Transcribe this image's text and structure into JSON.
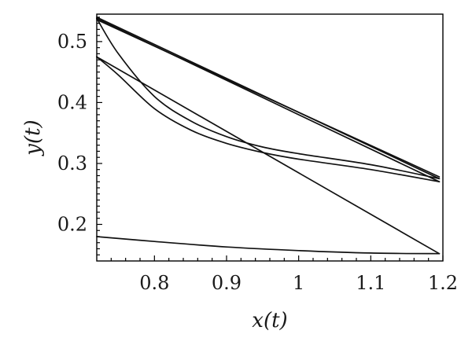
{
  "chart_data": {
    "type": "line",
    "title": "",
    "xlabel": "x(t)",
    "ylabel": "y(t)",
    "xlim": [
      0.72,
      1.2
    ],
    "ylim": [
      0.14,
      0.545
    ],
    "xticks": [
      0.8,
      0.9,
      1,
      1.1,
      1.2
    ],
    "xtick_labels": [
      "0.8",
      "0.9",
      "1",
      "1.1",
      "1.2"
    ],
    "yticks": [
      0.2,
      0.3,
      0.4,
      0.5
    ],
    "ytick_labels": [
      "0.2",
      "0.3",
      "0.4",
      "0.5"
    ],
    "grid": false,
    "legend": "none",
    "color": "#111111",
    "series": [
      {
        "x": [
          0.72,
          0.8,
          0.9,
          1.0,
          1.1,
          1.195
        ],
        "y": [
          0.18,
          0.172,
          0.163,
          0.157,
          0.153,
          0.152
        ]
      },
      {
        "x": [
          1.195,
          0.72
        ],
        "y": [
          0.152,
          0.475
        ]
      },
      {
        "x": [
          0.72,
          0.75,
          0.8,
          0.85,
          0.9,
          0.95,
          1.0,
          1.1,
          1.195
        ],
        "y": [
          0.475,
          0.445,
          0.39,
          0.355,
          0.333,
          0.318,
          0.307,
          0.29,
          0.27
        ]
      },
      {
        "x": [
          1.195,
          0.72
        ],
        "y": [
          0.27,
          0.538
        ]
      },
      {
        "x": [
          0.72,
          0.75,
          0.8,
          0.85,
          0.9,
          0.95,
          1.0,
          1.1,
          1.195
        ],
        "y": [
          0.538,
          0.48,
          0.41,
          0.37,
          0.344,
          0.327,
          0.316,
          0.298,
          0.275
        ]
      },
      {
        "x": [
          1.195,
          0.72
        ],
        "y": [
          0.275,
          0.54
        ]
      },
      {
        "x": [
          0.72,
          1.195
        ],
        "y": [
          0.536,
          0.278
        ]
      }
    ]
  }
}
